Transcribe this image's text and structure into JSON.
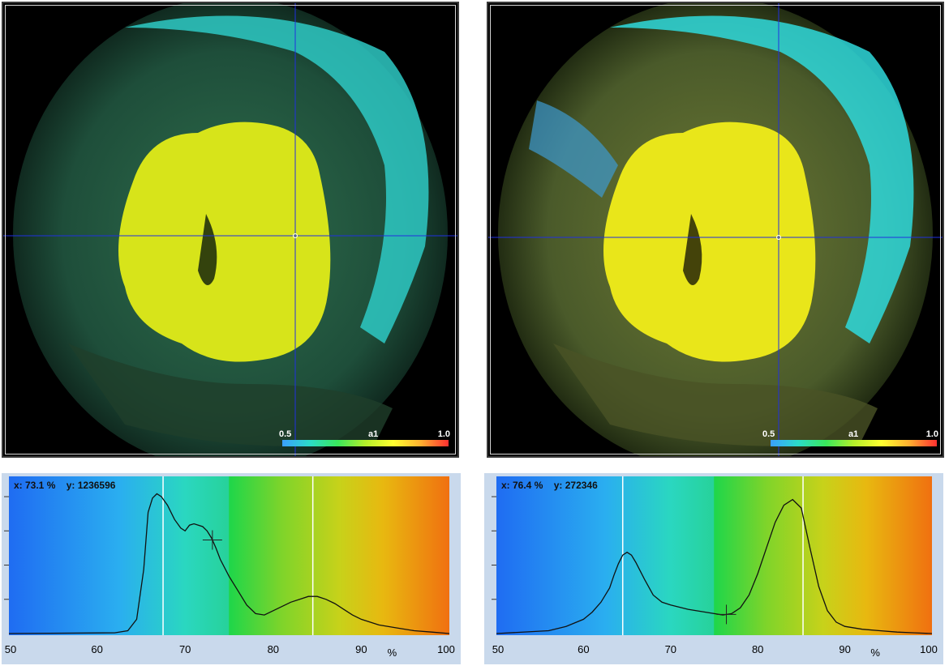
{
  "panels": [
    {
      "id": "left",
      "colorbar": {
        "min_label": "0.5",
        "channel_label": "a1",
        "max_label": "1.0"
      },
      "readout": {
        "x_label": "x: 73.1 %",
        "y_label": "y: 1236596"
      }
    },
    {
      "id": "right",
      "colorbar": {
        "min_label": "0.5",
        "channel_label": "a1",
        "max_label": "1.0"
      },
      "readout": {
        "x_label": "x: 76.4 %",
        "y_label": "y: 272346"
      }
    }
  ],
  "chart_data": [
    {
      "type": "line",
      "xlabel": "%",
      "ylabel": "",
      "xlim": [
        50,
        100
      ],
      "ylim": [
        0,
        1
      ],
      "x_ticks": [
        "50",
        "60",
        "70",
        "80",
        "90",
        "100"
      ],
      "markers": [
        67.5,
        84.5
      ],
      "cursor": {
        "x": 73.1,
        "y": 1236596
      },
      "series": [
        {
          "x": [
            50,
            62,
            63.5,
            64.5,
            65.3,
            65.8,
            66.3,
            66.8,
            67.3,
            68,
            68.8,
            69.5,
            70,
            70.5,
            71,
            71.5,
            72,
            72.5,
            73,
            73.5,
            74,
            75,
            76,
            77,
            78,
            79,
            80,
            82,
            83,
            84,
            85,
            86,
            87,
            88,
            89,
            90,
            92,
            94,
            96,
            98,
            100
          ],
          "values": [
            0,
            0.005,
            0.02,
            0.1,
            0.45,
            0.85,
            0.95,
            0.98,
            0.96,
            0.9,
            0.8,
            0.74,
            0.72,
            0.76,
            0.77,
            0.76,
            0.75,
            0.72,
            0.67,
            0.6,
            0.52,
            0.4,
            0.3,
            0.2,
            0.14,
            0.13,
            0.16,
            0.22,
            0.24,
            0.26,
            0.26,
            0.24,
            0.21,
            0.17,
            0.13,
            0.1,
            0.06,
            0.04,
            0.02,
            0.01,
            0
          ]
        }
      ]
    },
    {
      "type": "line",
      "xlabel": "%",
      "ylabel": "",
      "xlim": [
        50,
        100
      ],
      "ylim": [
        0,
        1
      ],
      "x_ticks": [
        "50",
        "60",
        "70",
        "80",
        "90",
        "100"
      ],
      "markers": [
        64.5,
        85.2
      ],
      "cursor": {
        "x": 76.4,
        "y": 272346
      },
      "series": [
        {
          "x": [
            50,
            56,
            58,
            60,
            61,
            62,
            63,
            63.5,
            64,
            64.5,
            65,
            65.5,
            66,
            67,
            68,
            69,
            70,
            72,
            74,
            75,
            76,
            77,
            78,
            79,
            80,
            81,
            82,
            83,
            84,
            85,
            86,
            87,
            88,
            89,
            90,
            92,
            94,
            96,
            98,
            100
          ],
          "values": [
            0,
            0.02,
            0.05,
            0.1,
            0.15,
            0.22,
            0.32,
            0.41,
            0.49,
            0.55,
            0.57,
            0.55,
            0.5,
            0.38,
            0.27,
            0.22,
            0.2,
            0.17,
            0.15,
            0.14,
            0.13,
            0.14,
            0.18,
            0.27,
            0.42,
            0.6,
            0.78,
            0.9,
            0.94,
            0.88,
            0.6,
            0.33,
            0.16,
            0.08,
            0.05,
            0.03,
            0.02,
            0.01,
            0.005,
            0
          ]
        }
      ]
    }
  ]
}
